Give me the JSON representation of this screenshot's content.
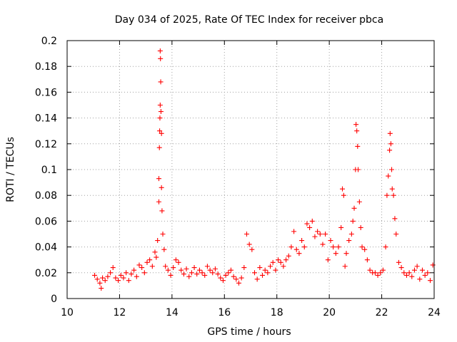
{
  "chart_data": {
    "type": "scatter",
    "title": "Day 034 of 2025, Rate Of TEC Index for receiver pbca",
    "xlabel": "GPS time / hours",
    "ylabel": "ROTI / TECUs",
    "xlim": [
      10,
      24
    ],
    "ylim": [
      0,
      0.2
    ],
    "xticks": [
      10,
      12,
      14,
      16,
      18,
      20,
      22,
      24
    ],
    "yticks": [
      0,
      0.02,
      0.04,
      0.06,
      0.08,
      0.1,
      0.12,
      0.14,
      0.16,
      0.18,
      0.2
    ],
    "xtick_labels": [
      "10",
      "12",
      "14",
      "16",
      "18",
      "20",
      "22",
      "24"
    ],
    "ytick_labels": [
      "0",
      "0.02",
      "0.04",
      "0.06",
      "0.08",
      "0.1",
      "0.12",
      "0.14",
      "0.16",
      "0.18",
      "0.2"
    ],
    "grid": true,
    "marker": "+",
    "color": "#ff0000",
    "series": [
      {
        "name": "ROTI",
        "x": [
          11.05,
          11.15,
          11.25,
          11.3,
          11.35,
          11.45,
          11.55,
          11.65,
          11.75,
          11.85,
          11.95,
          12.05,
          12.15,
          12.25,
          12.35,
          12.45,
          12.55,
          12.65,
          12.75,
          12.85,
          12.95,
          13.05,
          13.15,
          13.25,
          13.35,
          13.4,
          13.45,
          13.5,
          13.5,
          13.52,
          13.53,
          13.54,
          13.55,
          13.55,
          13.56,
          13.57,
          13.58,
          13.6,
          13.6,
          13.62,
          13.65,
          13.7,
          13.75,
          13.85,
          13.95,
          14.05,
          14.15,
          14.25,
          14.35,
          14.45,
          14.55,
          14.65,
          14.75,
          14.85,
          14.95,
          15.05,
          15.15,
          15.25,
          15.35,
          15.45,
          15.55,
          15.65,
          15.75,
          15.85,
          15.95,
          16.05,
          16.15,
          16.25,
          16.35,
          16.45,
          16.55,
          16.65,
          16.75,
          16.85,
          16.95,
          17.05,
          17.15,
          17.25,
          17.35,
          17.45,
          17.55,
          17.65,
          17.75,
          17.85,
          17.95,
          18.05,
          18.15,
          18.25,
          18.35,
          18.45,
          18.55,
          18.65,
          18.75,
          18.85,
          18.95,
          19.05,
          19.15,
          19.25,
          19.35,
          19.45,
          19.55,
          19.65,
          19.75,
          19.85,
          19.95,
          20.05,
          20.15,
          20.25,
          20.35,
          20.45,
          20.5,
          20.55,
          20.6,
          20.65,
          20.75,
          20.85,
          20.9,
          20.95,
          21.0,
          21.02,
          21.05,
          21.08,
          21.1,
          21.15,
          21.2,
          21.25,
          21.35,
          21.45,
          21.55,
          21.65,
          21.75,
          21.85,
          21.95,
          22.05,
          22.15,
          22.2,
          22.25,
          22.3,
          22.32,
          22.35,
          22.38,
          22.4,
          22.45,
          22.5,
          22.55,
          22.65,
          22.75,
          22.85,
          22.95,
          23.05,
          23.15,
          23.25,
          23.35,
          23.45,
          23.55,
          23.65,
          23.75,
          23.85,
          23.95
        ],
        "y": [
          0.018,
          0.015,
          0.012,
          0.008,
          0.016,
          0.014,
          0.017,
          0.02,
          0.024,
          0.016,
          0.014,
          0.018,
          0.016,
          0.02,
          0.014,
          0.019,
          0.022,
          0.017,
          0.026,
          0.024,
          0.02,
          0.028,
          0.03,
          0.025,
          0.036,
          0.032,
          0.045,
          0.075,
          0.093,
          0.117,
          0.13,
          0.14,
          0.15,
          0.192,
          0.186,
          0.168,
          0.145,
          0.128,
          0.086,
          0.068,
          0.05,
          0.038,
          0.025,
          0.022,
          0.018,
          0.024,
          0.03,
          0.028,
          0.022,
          0.019,
          0.023,
          0.017,
          0.02,
          0.024,
          0.019,
          0.022,
          0.02,
          0.018,
          0.025,
          0.022,
          0.02,
          0.023,
          0.019,
          0.016,
          0.014,
          0.018,
          0.02,
          0.022,
          0.017,
          0.015,
          0.012,
          0.016,
          0.024,
          0.05,
          0.042,
          0.038,
          0.02,
          0.015,
          0.024,
          0.018,
          0.022,
          0.02,
          0.025,
          0.028,
          0.022,
          0.03,
          0.028,
          0.025,
          0.03,
          0.033,
          0.04,
          0.052,
          0.038,
          0.035,
          0.045,
          0.04,
          0.058,
          0.055,
          0.06,
          0.048,
          0.052,
          0.05,
          0.042,
          0.05,
          0.03,
          0.045,
          0.04,
          0.035,
          0.04,
          0.055,
          0.085,
          0.08,
          0.025,
          0.035,
          0.045,
          0.05,
          0.06,
          0.07,
          0.1,
          0.135,
          0.13,
          0.118,
          0.1,
          0.075,
          0.055,
          0.04,
          0.038,
          0.03,
          0.022,
          0.02,
          0.02,
          0.018,
          0.02,
          0.022,
          0.04,
          0.08,
          0.095,
          0.115,
          0.128,
          0.12,
          0.1,
          0.085,
          0.08,
          0.062,
          0.05,
          0.028,
          0.024,
          0.02,
          0.018,
          0.02,
          0.017,
          0.022,
          0.025,
          0.015,
          0.022,
          0.018,
          0.02,
          0.014,
          0.026
        ]
      }
    ]
  }
}
